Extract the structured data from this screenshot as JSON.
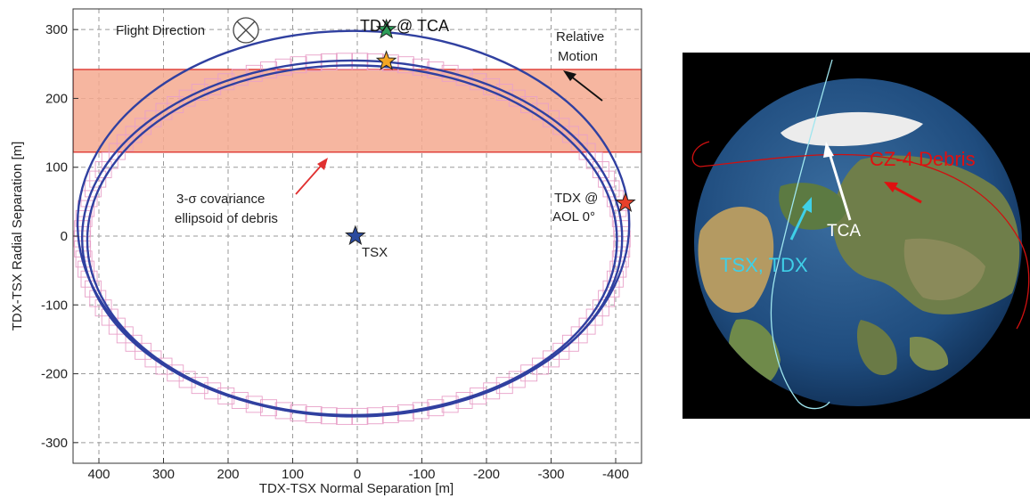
{
  "chart_data": {
    "type": "line",
    "xlabel": "TDX-TSX Normal Separation [m]",
    "ylabel": "TDX-TSX Radial Separation [m]",
    "xlim": [
      440,
      -440
    ],
    "ylim": [
      -330,
      330
    ],
    "x_reversed": true,
    "x_ticks": [
      400,
      300,
      200,
      100,
      0,
      -100,
      -200,
      -300,
      -400
    ],
    "y_ticks": [
      300,
      200,
      100,
      0,
      -100,
      -200,
      -300
    ],
    "grid": "dashed",
    "debris_band": {
      "y_min": 122,
      "y_max": 242,
      "color": "#f4a98f",
      "edge": "#e0403a"
    },
    "orbit_ellipses": [
      {
        "cx": 6,
        "cy": 18,
        "rx": 427,
        "ry": 280
      },
      {
        "cx": 8,
        "cy": -3,
        "rx": 418,
        "ry": 258
      },
      {
        "cx": 8,
        "cy": -6,
        "rx": 410,
        "ry": 254
      }
    ],
    "covariance_ellipse": {
      "cx": 8,
      "cy": -4,
      "rx": 418,
      "ry": 258,
      "markers": 110
    },
    "points": [
      {
        "label": "TDX @ TCA",
        "x": -45,
        "y": 300,
        "color": "#2e9e5a",
        "marker": "star"
      },
      {
        "label": "",
        "x": -45,
        "y": 254,
        "color": "#f5a623",
        "marker": "star"
      },
      {
        "label": "TDX @ AOL 0°",
        "x": -415,
        "y": 48,
        "color": "#e8402a",
        "marker": "star"
      },
      {
        "label": "TSX",
        "x": 3,
        "y": 0,
        "color": "#2a4a9e",
        "marker": "star"
      }
    ],
    "line_color": "#3040a0",
    "covariance_color": "#e8a0c8"
  },
  "annotations": {
    "flight_direction": "Flight Direction",
    "tdx_tca": "TDX @ TCA",
    "relative": "Relative",
    "motion": "Motion",
    "covariance_line1": "3-σ covariance",
    "covariance_line2": "ellipsoid of debris",
    "tdx_aol_line1": "TDX @",
    "tdx_aol_line2": "AOL 0°",
    "tsx": "TSX"
  },
  "globe": {
    "debris_label": "CZ-4 Debris",
    "tca_label": "TCA",
    "sat_label": "TSX, TDX",
    "debris_color": "#e01010",
    "sat_color": "#3fd0e8"
  }
}
